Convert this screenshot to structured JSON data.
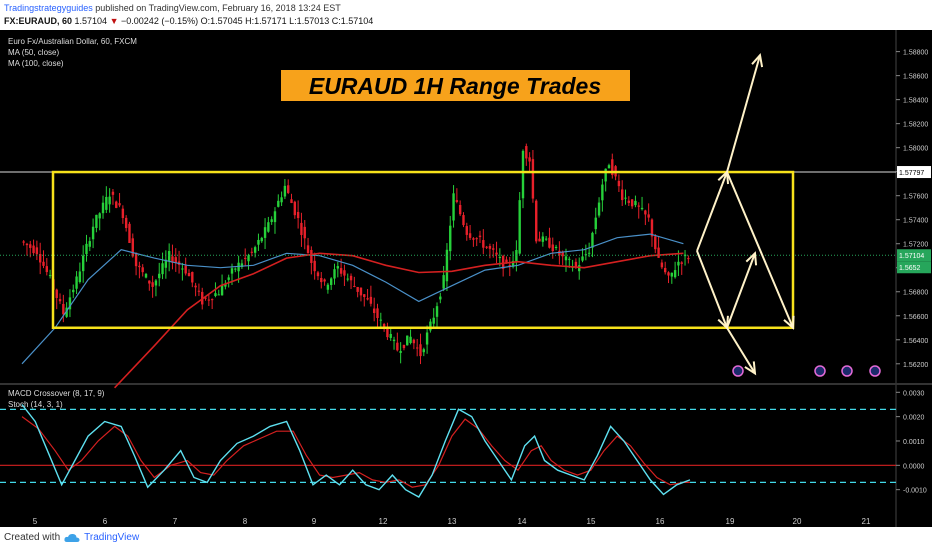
{
  "header": {
    "publisher": "Tradingstrategyguides",
    "published_text": "published on TradingView.com, February 16, 2018 13:24 EST",
    "symbol": "FX:EURAUD, 60",
    "last": "1.57104",
    "change_arrow": "▼",
    "change": "−0.00242 (−0.15%)",
    "ohlc": "O:1.57045 H:1.57171 L:1.57013 C:1.57104"
  },
  "legend": {
    "instrument": "Euro Fx/Australian Dollar, 60, FXCM",
    "ma1": "MA (50, close)",
    "ma2": "MA (100, close)",
    "macd": "MACD Crossover (8, 17, 9)",
    "stoch": "Stoch (14, 3, 1)"
  },
  "footer": {
    "created_with": "Created with",
    "brand": "TradingView"
  },
  "chart_data": {
    "type": "candlestick",
    "title": "EURAUD 1H Range Trades",
    "price_axis_ticks": [
      "1.58800",
      "1.58600",
      "1.58400",
      "1.58200",
      "1.58000",
      "1.57800",
      "1.57600",
      "1.57400",
      "1.57200",
      "1.57000",
      "1.56800",
      "1.56600",
      "1.56400",
      "1.56200"
    ],
    "ylim": [
      1.5604,
      1.5898
    ],
    "price_labels": {
      "level": "1.57797",
      "last": "1.57104",
      "ma": "1.5652"
    },
    "x_tick_labels": [
      "5",
      "6",
      "7",
      "8",
      "9",
      "12",
      "13",
      "14",
      "15",
      "16",
      "19",
      "20",
      "21"
    ],
    "range_box": {
      "top": 1.57797,
      "bottom": 1.565
    },
    "indicator_axis_ticks": [
      "0.0030",
      "0.0020",
      "0.0010",
      "0.0000",
      "-0.0010"
    ],
    "indicator_ylim": [
      -0.002,
      0.0033
    ],
    "indicator_levels": {
      "upper": 0.0023,
      "zero": 0.0,
      "lower": -0.0007
    },
    "price_path_anchors": [
      {
        "t": 0,
        "p": 1.5722
      },
      {
        "t": 5,
        "p": 1.5714
      },
      {
        "t": 9,
        "p": 1.569
      },
      {
        "t": 13,
        "p": 1.5662
      },
      {
        "t": 17,
        "p": 1.569
      },
      {
        "t": 22,
        "p": 1.5735
      },
      {
        "t": 27,
        "p": 1.5762
      },
      {
        "t": 31,
        "p": 1.5745
      },
      {
        "t": 35,
        "p": 1.5702
      },
      {
        "t": 40,
        "p": 1.5685
      },
      {
        "t": 45,
        "p": 1.571
      },
      {
        "t": 50,
        "p": 1.5698
      },
      {
        "t": 55,
        "p": 1.5672
      },
      {
        "t": 60,
        "p": 1.568
      },
      {
        "t": 65,
        "p": 1.57
      },
      {
        "t": 70,
        "p": 1.5712
      },
      {
        "t": 75,
        "p": 1.5735
      },
      {
        "t": 80,
        "p": 1.5768
      },
      {
        "t": 84,
        "p": 1.574
      },
      {
        "t": 88,
        "p": 1.5705
      },
      {
        "t": 92,
        "p": 1.5685
      },
      {
        "t": 96,
        "p": 1.57
      },
      {
        "t": 100,
        "p": 1.5688
      },
      {
        "t": 105,
        "p": 1.5672
      },
      {
        "t": 110,
        "p": 1.565
      },
      {
        "t": 114,
        "p": 1.5632
      },
      {
        "t": 118,
        "p": 1.5642
      },
      {
        "t": 121,
        "p": 1.5628
      },
      {
        "t": 125,
        "p": 1.566
      },
      {
        "t": 128,
        "p": 1.569
      },
      {
        "t": 131,
        "p": 1.576
      },
      {
        "t": 135,
        "p": 1.573
      },
      {
        "t": 139,
        "p": 1.5722
      },
      {
        "t": 143,
        "p": 1.5712
      },
      {
        "t": 147,
        "p": 1.57
      },
      {
        "t": 150,
        "p": 1.5712
      },
      {
        "t": 152,
        "p": 1.58
      },
      {
        "t": 154,
        "p": 1.579
      },
      {
        "t": 156,
        "p": 1.5725
      },
      {
        "t": 160,
        "p": 1.572
      },
      {
        "t": 164,
        "p": 1.5708
      },
      {
        "t": 168,
        "p": 1.57
      },
      {
        "t": 172,
        "p": 1.5715
      },
      {
        "t": 176,
        "p": 1.577
      },
      {
        "t": 178,
        "p": 1.5788
      },
      {
        "t": 182,
        "p": 1.576
      },
      {
        "t": 186,
        "p": 1.5752
      },
      {
        "t": 190,
        "p": 1.574
      },
      {
        "t": 193,
        "p": 1.5705
      },
      {
        "t": 196,
        "p": 1.569
      },
      {
        "t": 199,
        "p": 1.5705
      },
      {
        "t": 202,
        "p": 1.571
      }
    ],
    "ma50_anchors": [
      {
        "t": 0,
        "p": 1.562
      },
      {
        "t": 10,
        "p": 1.565
      },
      {
        "t": 20,
        "p": 1.569
      },
      {
        "t": 30,
        "p": 1.5715
      },
      {
        "t": 40,
        "p": 1.5708
      },
      {
        "t": 50,
        "p": 1.5702
      },
      {
        "t": 60,
        "p": 1.57
      },
      {
        "t": 70,
        "p": 1.5702
      },
      {
        "t": 80,
        "p": 1.5712
      },
      {
        "t": 90,
        "p": 1.571
      },
      {
        "t": 100,
        "p": 1.5702
      },
      {
        "t": 110,
        "p": 1.5688
      },
      {
        "t": 120,
        "p": 1.5672
      },
      {
        "t": 130,
        "p": 1.5685
      },
      {
        "t": 140,
        "p": 1.5698
      },
      {
        "t": 150,
        "p": 1.5702
      },
      {
        "t": 160,
        "p": 1.5712
      },
      {
        "t": 170,
        "p": 1.5715
      },
      {
        "t": 180,
        "p": 1.5725
      },
      {
        "t": 190,
        "p": 1.5728
      },
      {
        "t": 200,
        "p": 1.572
      }
    ],
    "ma100_anchors": [
      {
        "t": 28,
        "p": 1.56
      },
      {
        "t": 40,
        "p": 1.5635
      },
      {
        "t": 50,
        "p": 1.5665
      },
      {
        "t": 60,
        "p": 1.5685
      },
      {
        "t": 70,
        "p": 1.5695
      },
      {
        "t": 80,
        "p": 1.5708
      },
      {
        "t": 90,
        "p": 1.5712
      },
      {
        "t": 100,
        "p": 1.571
      },
      {
        "t": 110,
        "p": 1.5702
      },
      {
        "t": 120,
        "p": 1.5696
      },
      {
        "t": 130,
        "p": 1.5697
      },
      {
        "t": 140,
        "p": 1.5702
      },
      {
        "t": 150,
        "p": 1.5705
      },
      {
        "t": 160,
        "p": 1.5702
      },
      {
        "t": 170,
        "p": 1.57
      },
      {
        "t": 180,
        "p": 1.5705
      },
      {
        "t": 190,
        "p": 1.571
      },
      {
        "t": 200,
        "p": 1.5712
      }
    ],
    "stoch_k_anchors": [
      {
        "t": 0,
        "p": 0.0025
      },
      {
        "t": 4,
        "p": 0.0018
      },
      {
        "t": 8,
        "p": 0.0005
      },
      {
        "t": 12,
        "p": -0.0008
      },
      {
        "t": 16,
        "p": 0.0002
      },
      {
        "t": 20,
        "p": 0.0012
      },
      {
        "t": 25,
        "p": 0.0018
      },
      {
        "t": 30,
        "p": 0.0016
      },
      {
        "t": 34,
        "p": 0.0004
      },
      {
        "t": 38,
        "p": -0.0009
      },
      {
        "t": 43,
        "p": -0.0002
      },
      {
        "t": 48,
        "p": 0.0006
      },
      {
        "t": 52,
        "p": -0.0005
      },
      {
        "t": 56,
        "p": -0.0007
      },
      {
        "t": 60,
        "p": 0.0002
      },
      {
        "t": 65,
        "p": 0.0009
      },
      {
        "t": 70,
        "p": 0.0012
      },
      {
        "t": 75,
        "p": 0.0016
      },
      {
        "t": 80,
        "p": 0.0018
      },
      {
        "t": 84,
        "p": 0.0006
      },
      {
        "t": 88,
        "p": -0.0008
      },
      {
        "t": 92,
        "p": -0.0004
      },
      {
        "t": 96,
        "p": -0.0008
      },
      {
        "t": 100,
        "p": -0.0002
      },
      {
        "t": 104,
        "p": -0.0008
      },
      {
        "t": 108,
        "p": -0.001
      },
      {
        "t": 112,
        "p": -0.0004
      },
      {
        "t": 116,
        "p": -0.001
      },
      {
        "t": 120,
        "p": -0.0013
      },
      {
        "t": 124,
        "p": -0.0004
      },
      {
        "t": 128,
        "p": 0.001
      },
      {
        "t": 132,
        "p": 0.0023
      },
      {
        "t": 136,
        "p": 0.002
      },
      {
        "t": 140,
        "p": 0.001
      },
      {
        "t": 144,
        "p": 0.0002
      },
      {
        "t": 148,
        "p": -0.0006
      },
      {
        "t": 152,
        "p": 0.0008
      },
      {
        "t": 155,
        "p": 0.0012
      },
      {
        "t": 158,
        "p": 0.0002
      },
      {
        "t": 162,
        "p": -0.0002
      },
      {
        "t": 166,
        "p": -0.0004
      },
      {
        "t": 170,
        "p": -0.0006
      },
      {
        "t": 174,
        "p": 0.0004
      },
      {
        "t": 178,
        "p": 0.0016
      },
      {
        "t": 182,
        "p": 0.001
      },
      {
        "t": 186,
        "p": 0.0002
      },
      {
        "t": 190,
        "p": -0.0006
      },
      {
        "t": 194,
        "p": -0.0012
      },
      {
        "t": 198,
        "p": -0.0008
      },
      {
        "t": 202,
        "p": -0.0006
      }
    ],
    "stoch_d_anchors": [
      {
        "t": 0,
        "p": 0.002
      },
      {
        "t": 5,
        "p": 0.0015
      },
      {
        "t": 10,
        "p": 0.0006
      },
      {
        "t": 14,
        "p": -0.0002
      },
      {
        "t": 18,
        "p": 0.0002
      },
      {
        "t": 23,
        "p": 0.001
      },
      {
        "t": 28,
        "p": 0.0016
      },
      {
        "t": 32,
        "p": 0.0012
      },
      {
        "t": 36,
        "p": 0.0002
      },
      {
        "t": 40,
        "p": -0.0005
      },
      {
        "t": 45,
        "p": 0.0
      },
      {
        "t": 50,
        "p": 0.0002
      },
      {
        "t": 54,
        "p": -0.0003
      },
      {
        "t": 58,
        "p": -0.0004
      },
      {
        "t": 62,
        "p": 0.0002
      },
      {
        "t": 67,
        "p": 0.0008
      },
      {
        "t": 72,
        "p": 0.0011
      },
      {
        "t": 77,
        "p": 0.0014
      },
      {
        "t": 82,
        "p": 0.0014
      },
      {
        "t": 86,
        "p": 0.0004
      },
      {
        "t": 90,
        "p": -0.0004
      },
      {
        "t": 94,
        "p": -0.0005
      },
      {
        "t": 98,
        "p": -0.0004
      },
      {
        "t": 102,
        "p": -0.0003
      },
      {
        "t": 106,
        "p": -0.0006
      },
      {
        "t": 110,
        "p": -0.0007
      },
      {
        "t": 114,
        "p": -0.0006
      },
      {
        "t": 118,
        "p": -0.0009
      },
      {
        "t": 122,
        "p": -0.0008
      },
      {
        "t": 126,
        "p": 0.0
      },
      {
        "t": 130,
        "p": 0.0012
      },
      {
        "t": 134,
        "p": 0.0019
      },
      {
        "t": 138,
        "p": 0.0015
      },
      {
        "t": 142,
        "p": 0.0008
      },
      {
        "t": 146,
        "p": 0.0002
      },
      {
        "t": 150,
        "p": -0.0002
      },
      {
        "t": 154,
        "p": 0.0006
      },
      {
        "t": 157,
        "p": 0.0008
      },
      {
        "t": 160,
        "p": 0.0002
      },
      {
        "t": 164,
        "p": -0.0002
      },
      {
        "t": 168,
        "p": -0.0004
      },
      {
        "t": 172,
        "p": -0.0002
      },
      {
        "t": 176,
        "p": 0.0006
      },
      {
        "t": 180,
        "p": 0.0012
      },
      {
        "t": 184,
        "p": 0.0008
      },
      {
        "t": 188,
        "p": 0.0001
      },
      {
        "t": 192,
        "p": -0.0005
      },
      {
        "t": 196,
        "p": -0.0008
      },
      {
        "t": 200,
        "p": -0.0007
      },
      {
        "t": 202,
        "p": -0.0007
      }
    ],
    "colors": {
      "background": "#000000",
      "bull": "#26d13a",
      "bear": "#e8202a",
      "ma50": "#4a90c8",
      "ma100": "#d42020",
      "box": "#f7e21b",
      "title_bg": "#f7a21b",
      "stoch_k": "#5ee0f0",
      "stoch_d": "#d42020",
      "level_line": "#43d9e8",
      "zero_line": "#d42020",
      "arrows": "#fff2c8"
    }
  }
}
